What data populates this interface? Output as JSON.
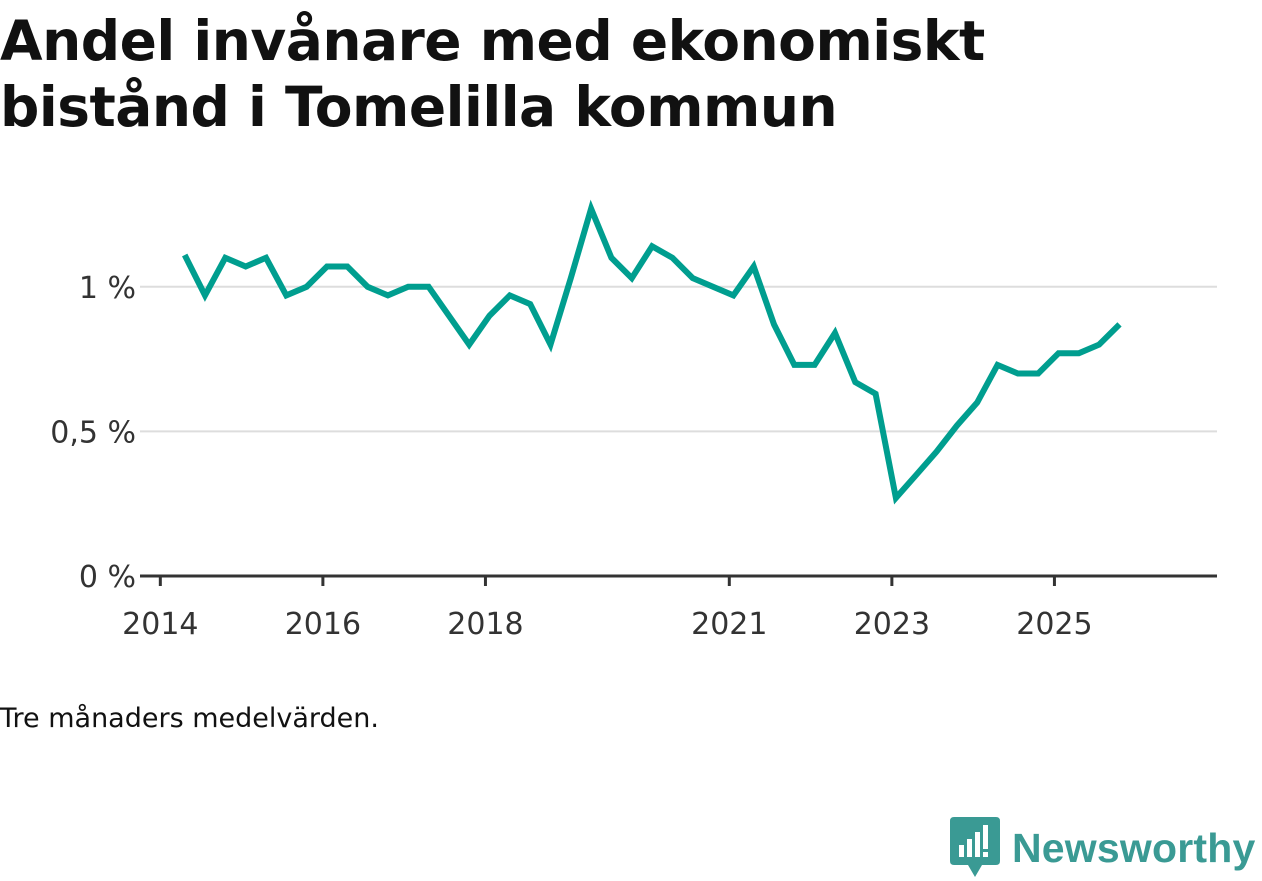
{
  "title": "Andel invånare med ekonomiskt bistånd i Tomelilla kommun",
  "caption": "Tre månaders medelvärden.",
  "brand": {
    "name": "Newsworthy",
    "icon": "newsworthy-logo-icon",
    "color": "#3a9a94"
  },
  "colors": {
    "line": "#009e8f",
    "grid": "#dddddd",
    "axis": "#333333"
  },
  "chart_data": {
    "type": "line",
    "title": "Andel invånare med ekonomiskt bistånd i Tomelilla kommun",
    "xlabel": "",
    "ylabel": "",
    "ylim": [
      0,
      1.3
    ],
    "y_ticks": [
      {
        "value": 0,
        "label": "0 %"
      },
      {
        "value": 0.5,
        "label": "0,5 %"
      },
      {
        "value": 1.0,
        "label": "1 %"
      }
    ],
    "x_ticks": [
      {
        "value": 2014.0,
        "label": "2014"
      },
      {
        "value": 2016.0,
        "label": "2016"
      },
      {
        "value": 2018.0,
        "label": "2018"
      },
      {
        "value": 2021.0,
        "label": "2021"
      },
      {
        "value": 2023.0,
        "label": "2023"
      },
      {
        "value": 2025.0,
        "label": "2025"
      }
    ],
    "xlim": [
      2013.75,
      2027.0
    ],
    "series": [
      {
        "name": "Andel invånare med ekonomiskt bistånd",
        "x": [
          2014.3,
          2014.55,
          2014.8,
          2015.05,
          2015.3,
          2015.55,
          2015.8,
          2016.05,
          2016.3,
          2016.55,
          2016.8,
          2017.05,
          2017.3,
          2017.55,
          2017.8,
          2018.05,
          2018.3,
          2018.55,
          2018.8,
          2019.05,
          2019.3,
          2019.55,
          2019.8,
          2020.05,
          2020.3,
          2020.55,
          2020.8,
          2021.05,
          2021.3,
          2021.55,
          2021.8,
          2022.05,
          2022.3,
          2022.55,
          2022.8,
          2023.05,
          2023.3,
          2023.55,
          2023.8,
          2024.05,
          2024.3,
          2024.55,
          2024.8,
          2025.05,
          2025.3,
          2025.55,
          2025.8
        ],
        "values": [
          1.11,
          0.97,
          1.1,
          1.07,
          1.1,
          0.97,
          1.0,
          1.07,
          1.07,
          1.0,
          0.97,
          1.0,
          1.0,
          0.9,
          0.8,
          0.9,
          0.97,
          0.94,
          0.8,
          1.03,
          1.27,
          1.1,
          1.03,
          1.14,
          1.1,
          1.03,
          1.0,
          0.97,
          1.07,
          0.87,
          0.73,
          0.73,
          0.84,
          0.67,
          0.63,
          0.27,
          0.35,
          0.43,
          0.52,
          0.6,
          0.73,
          0.7,
          0.7,
          0.77,
          0.77,
          0.8,
          0.87
        ]
      }
    ],
    "grid": true,
    "legend": "none"
  }
}
